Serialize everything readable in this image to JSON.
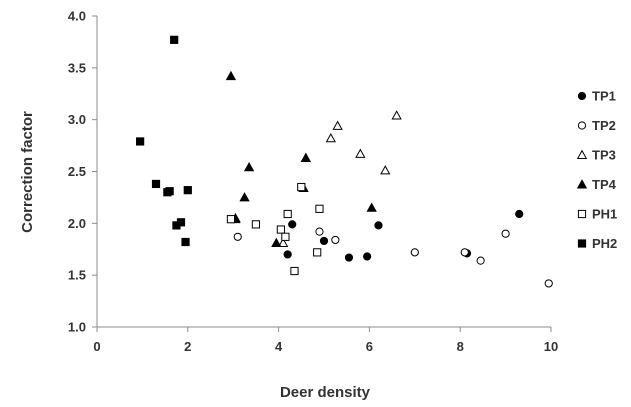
{
  "chart_data": {
    "type": "scatter",
    "title": "",
    "xlabel": "Deer density",
    "ylabel": "Correction factor",
    "xlim": [
      0,
      10
    ],
    "ylim": [
      1.0,
      4.0
    ],
    "x_ticks": [
      "0",
      "2",
      "4",
      "6",
      "8",
      "10"
    ],
    "y_ticks": [
      "1.0",
      "1.5",
      "2.0",
      "2.5",
      "3.0",
      "3.5",
      "4.0"
    ],
    "grid": false,
    "legend_position": "right",
    "series": [
      {
        "name": "TP1",
        "marker": "circle-filled",
        "color": "#000000",
        "points": [
          [
            4.2,
            1.7
          ],
          [
            4.3,
            1.99
          ],
          [
            5.0,
            1.83
          ],
          [
            5.55,
            1.67
          ],
          [
            5.95,
            1.68
          ],
          [
            6.2,
            1.98
          ],
          [
            8.15,
            1.71
          ],
          [
            9.3,
            2.09
          ]
        ]
      },
      {
        "name": "TP2",
        "marker": "circle-open",
        "color": "#000000",
        "points": [
          [
            3.1,
            1.87
          ],
          [
            4.9,
            1.92
          ],
          [
            5.25,
            1.84
          ],
          [
            7.0,
            1.72
          ],
          [
            8.1,
            1.72
          ],
          [
            8.45,
            1.64
          ],
          [
            9.0,
            1.9
          ],
          [
            9.95,
            1.42
          ]
        ]
      },
      {
        "name": "TP3",
        "marker": "triangle-open",
        "color": "#000000",
        "points": [
          [
            3.05,
            2.05
          ],
          [
            4.1,
            1.81
          ],
          [
            4.6,
            2.63
          ],
          [
            5.15,
            2.82
          ],
          [
            5.3,
            2.94
          ],
          [
            5.8,
            2.67
          ],
          [
            6.35,
            2.51
          ],
          [
            6.6,
            3.04
          ]
        ]
      },
      {
        "name": "TP4",
        "marker": "triangle-filled",
        "color": "#000000",
        "points": [
          [
            2.95,
            3.42
          ],
          [
            3.05,
            2.04
          ],
          [
            3.25,
            2.25
          ],
          [
            3.35,
            2.54
          ],
          [
            3.95,
            1.81
          ],
          [
            4.55,
            2.34
          ],
          [
            4.6,
            2.63
          ],
          [
            6.05,
            2.15
          ]
        ]
      },
      {
        "name": "PH1",
        "marker": "square-open",
        "color": "#000000",
        "points": [
          [
            2.95,
            2.04
          ],
          [
            3.5,
            1.99
          ],
          [
            4.05,
            1.94
          ],
          [
            4.15,
            1.87
          ],
          [
            4.2,
            2.09
          ],
          [
            4.35,
            1.54
          ],
          [
            4.5,
            2.35
          ],
          [
            4.85,
            1.72
          ],
          [
            4.9,
            2.14
          ]
        ]
      },
      {
        "name": "PH2",
        "marker": "square-filled",
        "color": "#000000",
        "points": [
          [
            0.95,
            2.79
          ],
          [
            1.3,
            2.38
          ],
          [
            1.55,
            2.3
          ],
          [
            1.6,
            2.31
          ],
          [
            1.7,
            3.77
          ],
          [
            1.75,
            1.98
          ],
          [
            1.85,
            2.01
          ],
          [
            1.95,
            1.82
          ],
          [
            2.0,
            2.32
          ]
        ]
      }
    ]
  }
}
